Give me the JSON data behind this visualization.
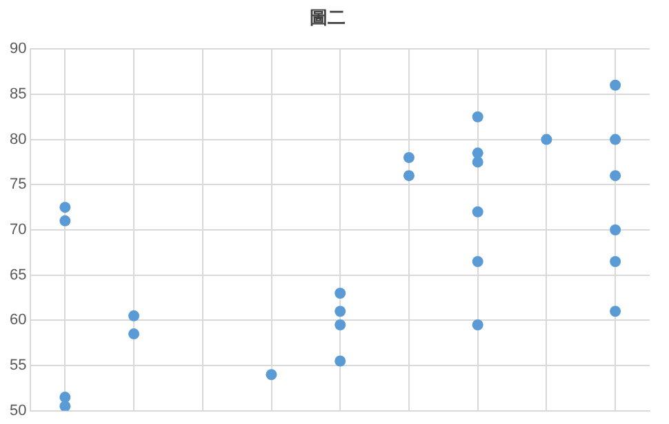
{
  "chart_data": {
    "type": "scatter",
    "title": "圖二",
    "categories": [
      null,
      null,
      null,
      null,
      null,
      null,
      null,
      null,
      null
    ],
    "series": [
      {
        "color": "#5b9bd5",
        "values": [
          72.5,
          60.5,
          null,
          54,
          63,
          78,
          82.5,
          80,
          86
        ]
      },
      {
        "color": "#5b9bd5",
        "values": [
          71,
          58.5,
          null,
          null,
          61,
          76,
          78.5,
          null,
          80
        ]
      },
      {
        "color": "#5b9bd5",
        "values": [
          51.5,
          null,
          null,
          null,
          59.5,
          null,
          77.5,
          null,
          76
        ]
      },
      {
        "color": "#5b9bd5",
        "values": [
          50.5,
          null,
          null,
          null,
          55.5,
          null,
          72,
          null,
          70
        ]
      },
      {
        "color": "#5b9bd5",
        "values": [
          null,
          null,
          null,
          null,
          null,
          null,
          66.5,
          null,
          66.5
        ]
      },
      {
        "color": "#5b9bd5",
        "values": [
          null,
          null,
          null,
          null,
          null,
          null,
          59.5,
          null,
          61
        ]
      }
    ],
    "marker": "circle",
    "ylim": [
      50,
      90
    ],
    "yticks": [
      50,
      55,
      60,
      65,
      70,
      75,
      80,
      85,
      90
    ],
    "grid": true,
    "tick_labels": "y"
  }
}
